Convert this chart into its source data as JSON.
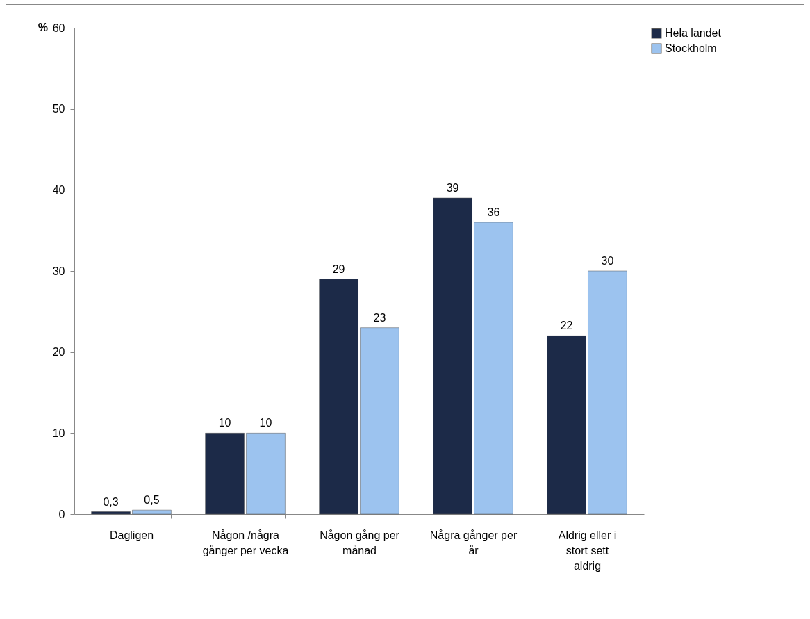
{
  "chart_data": {
    "type": "bar",
    "ylabel": "%",
    "categories": [
      "Dagligen",
      "Någon /några gånger per vecka",
      "Någon gång per månad",
      "Några gånger per år",
      "Aldrig eller i stort sett aldrig"
    ],
    "series": [
      {
        "name": "Hela  landet",
        "color": "#1c2a48",
        "values": [
          0.3,
          10,
          29,
          39,
          22
        ],
        "value_labels": [
          "0,3",
          "10",
          "29",
          "39",
          "22"
        ]
      },
      {
        "name": "Stockholm",
        "color": "#9cc3ef",
        "values": [
          0.5,
          10,
          23,
          36,
          30
        ],
        "value_labels": [
          "0,5",
          "10",
          "23",
          "36",
          "30"
        ]
      }
    ],
    "ylim": [
      0,
      60
    ],
    "yticks": [
      0,
      10,
      20,
      30,
      40,
      50,
      60
    ],
    "grid": false,
    "legend": "right"
  }
}
